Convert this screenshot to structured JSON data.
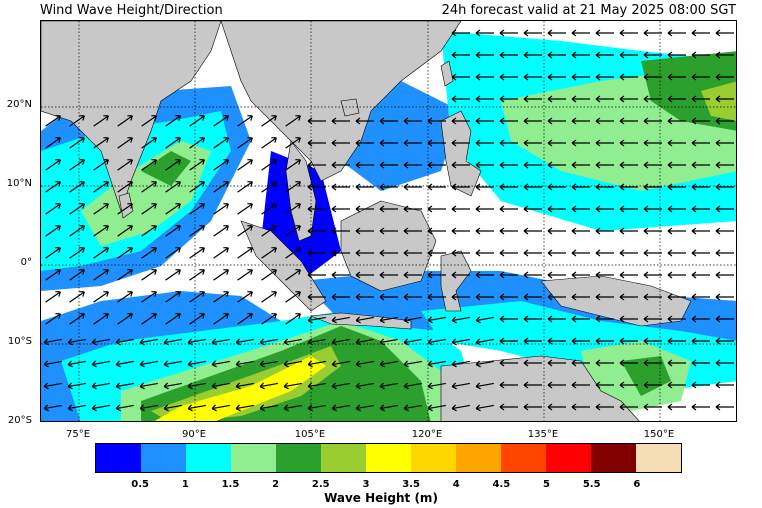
{
  "header": {
    "title": "Wind Wave Height/Direction",
    "valid_time": "24h forecast valid at 21 May 2025 08:00 SGT"
  },
  "map": {
    "lat_labels": [
      "20°N",
      "10°N",
      "0°",
      "10°S",
      "20°S"
    ],
    "lon_labels": [
      "75°E",
      "90°E",
      "105°E",
      "120°E",
      "135°E",
      "150°E"
    ],
    "land_color": "#c8c8c8",
    "arrow_direction_west_region": "north-east",
    "arrow_direction_east_region": "west"
  },
  "colorbar": {
    "label": "Wave Height (m)",
    "ticks": [
      "0.5",
      "1",
      "1.5",
      "2",
      "2.5",
      "3",
      "3.5",
      "4",
      "4.5",
      "5",
      "5.5",
      "6"
    ],
    "colors": [
      "#0000ff",
      "#1e90ff",
      "#00ffff",
      "#90ee90",
      "#2ca02c",
      "#9acd32",
      "#ffff00",
      "#ffd700",
      "#ffa500",
      "#ff4500",
      "#ff0000",
      "#800000",
      "#f5deb3"
    ]
  }
}
